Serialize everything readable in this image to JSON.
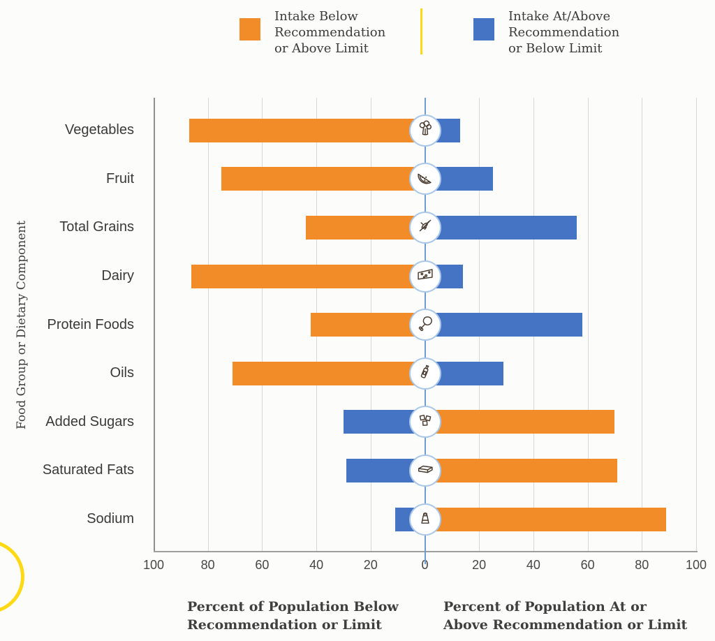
{
  "colors": {
    "orange": "#F28C28",
    "blue": "#4674C4",
    "yellow": "#FFD913",
    "center_line": "#6F9BD2",
    "circle_border": "#A9C7E8",
    "gridline": "#D7D7D7",
    "axis_line": "#9E9E9E",
    "icon_stroke": "#4A3B2F",
    "background": "#FCFCFA"
  },
  "legend": {
    "items": [
      {
        "label": "Intake Below\nRecommendation\nor Above Limit",
        "color_key": "orange"
      },
      {
        "label": "Intake At/Above\nRecommendation\nor Below Limit",
        "color_key": "blue"
      }
    ]
  },
  "y_axis_title": "Food Group or Dietary Component",
  "x_axis_titles": {
    "left": "Percent of Population Below\nRecommendation or Limit",
    "right": "Percent of Population At or\nAbove Recommendation or Limit"
  },
  "chart_data": {
    "type": "bar",
    "subtype": "diverging-horizontal",
    "unit": "percent of population",
    "axis_tick_labels": [
      "100",
      "80",
      "60",
      "40",
      "20",
      "0",
      "20",
      "40",
      "60",
      "80",
      "100"
    ],
    "x_range_each_side": [
      0,
      100
    ],
    "grid": true,
    "legend_position": "top",
    "series": [
      {
        "name": "Intake Below Recommendation or Above Limit",
        "color_key": "orange"
      },
      {
        "name": "Intake At/Above Recommendation or Below Limit",
        "color_key": "blue"
      }
    ],
    "categories": [
      "Vegetables",
      "Fruit",
      "Total Grains",
      "Dairy",
      "Protein Foods",
      "Oils",
      "Added Sugars",
      "Saturated Fats",
      "Sodium"
    ],
    "rows": [
      {
        "label": "Vegetables",
        "icon": "broccoli-icon",
        "left": {
          "value": 87,
          "color_key": "orange"
        },
        "right": {
          "value": 13,
          "color_key": "blue"
        }
      },
      {
        "label": "Fruit",
        "icon": "watermelon-icon",
        "left": {
          "value": 75,
          "color_key": "orange"
        },
        "right": {
          "value": 25,
          "color_key": "blue"
        }
      },
      {
        "label": "Total Grains",
        "icon": "wheat-icon",
        "left": {
          "value": 44,
          "color_key": "orange"
        },
        "right": {
          "value": 56,
          "color_key": "blue"
        }
      },
      {
        "label": "Dairy",
        "icon": "cheese-icon",
        "left": {
          "value": 86,
          "color_key": "orange"
        },
        "right": {
          "value": 14,
          "color_key": "blue"
        }
      },
      {
        "label": "Protein Foods",
        "icon": "drumstick-icon",
        "left": {
          "value": 42,
          "color_key": "orange"
        },
        "right": {
          "value": 58,
          "color_key": "blue"
        }
      },
      {
        "label": "Oils",
        "icon": "oil-bottle-icon",
        "left": {
          "value": 71,
          "color_key": "orange"
        },
        "right": {
          "value": 29,
          "color_key": "blue"
        }
      },
      {
        "label": "Added Sugars",
        "icon": "sugar-cubes-icon",
        "left": {
          "value": 30,
          "color_key": "blue"
        },
        "right": {
          "value": 70,
          "color_key": "orange"
        }
      },
      {
        "label": "Saturated Fats",
        "icon": "butter-icon",
        "left": {
          "value": 29,
          "color_key": "blue"
        },
        "right": {
          "value": 71,
          "color_key": "orange"
        }
      },
      {
        "label": "Sodium",
        "icon": "salt-shaker-icon",
        "left": {
          "value": 11,
          "color_key": "blue"
        },
        "right": {
          "value": 89,
          "color_key": "orange"
        }
      }
    ]
  }
}
